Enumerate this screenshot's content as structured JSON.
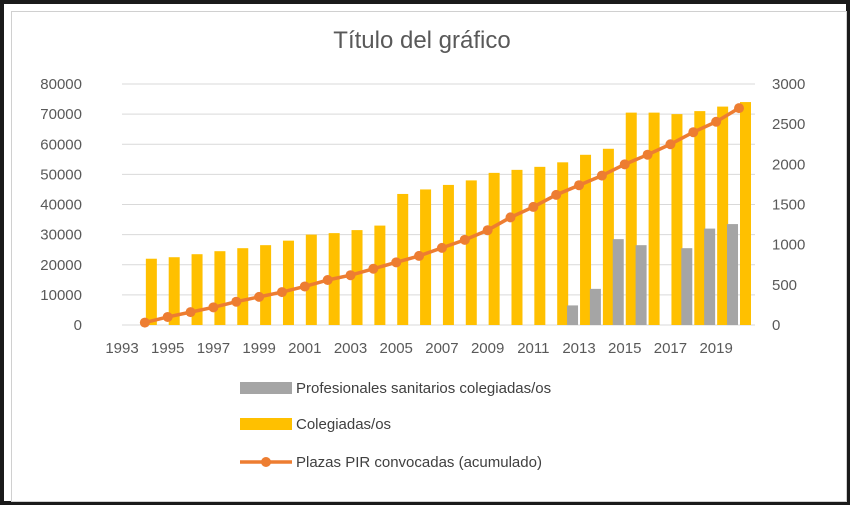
{
  "chart_data": {
    "type": "bar",
    "title": "Título del gráfico",
    "x": [
      1994,
      1995,
      1996,
      1997,
      1998,
      1999,
      2000,
      2001,
      2002,
      2003,
      2004,
      2005,
      2006,
      2007,
      2008,
      2009,
      2010,
      2011,
      2012,
      2013,
      2014,
      2015,
      2016,
      2017,
      2018,
      2019,
      2020
    ],
    "x_tick_labels": [
      "1993",
      "1995",
      "1997",
      "1999",
      "2001",
      "2003",
      "2005",
      "2007",
      "2009",
      "2011",
      "2013",
      "2015",
      "2017",
      "2019"
    ],
    "y_left_ticks": [
      "0",
      "10000",
      "20000",
      "30000",
      "40000",
      "50000",
      "60000",
      "70000",
      "80000"
    ],
    "y_right_ticks": [
      "0",
      "500",
      "1000",
      "1500",
      "2000",
      "2500",
      "3000"
    ],
    "ylim_left": [
      0,
      80000
    ],
    "ylim_right": [
      0,
      3000
    ],
    "series": [
      {
        "name": "Profesionales sanitarios colegiadas/os",
        "type": "bar",
        "axis": "left",
        "color": "#a5a5a5",
        "values": [
          null,
          null,
          null,
          null,
          null,
          null,
          null,
          null,
          null,
          null,
          null,
          null,
          null,
          null,
          null,
          null,
          null,
          null,
          null,
          6500,
          12000,
          28500,
          26500,
          null,
          25500,
          32000,
          33500
        ]
      },
      {
        "name": "Colegiadas/os",
        "type": "bar",
        "axis": "left",
        "color": "#ffc000",
        "values": [
          22000,
          22500,
          23500,
          24500,
          25500,
          26500,
          28000,
          30000,
          30500,
          31500,
          33000,
          43500,
          45000,
          46500,
          48000,
          50500,
          51500,
          52500,
          54000,
          56500,
          58500,
          70500,
          70500,
          70000,
          71000,
          72500,
          74000
        ]
      },
      {
        "name": "Plazas PIR convocadas (acumulado)",
        "type": "line",
        "axis": "right",
        "color": "#ed7d31",
        "values": [
          30,
          100,
          160,
          220,
          290,
          350,
          410,
          480,
          560,
          620,
          700,
          780,
          860,
          960,
          1060,
          1180,
          1340,
          1470,
          1620,
          1740,
          1860,
          2000,
          2120,
          2250,
          2400,
          2530,
          2700
        ]
      }
    ],
    "grid": true,
    "legend_position": "bottom"
  }
}
